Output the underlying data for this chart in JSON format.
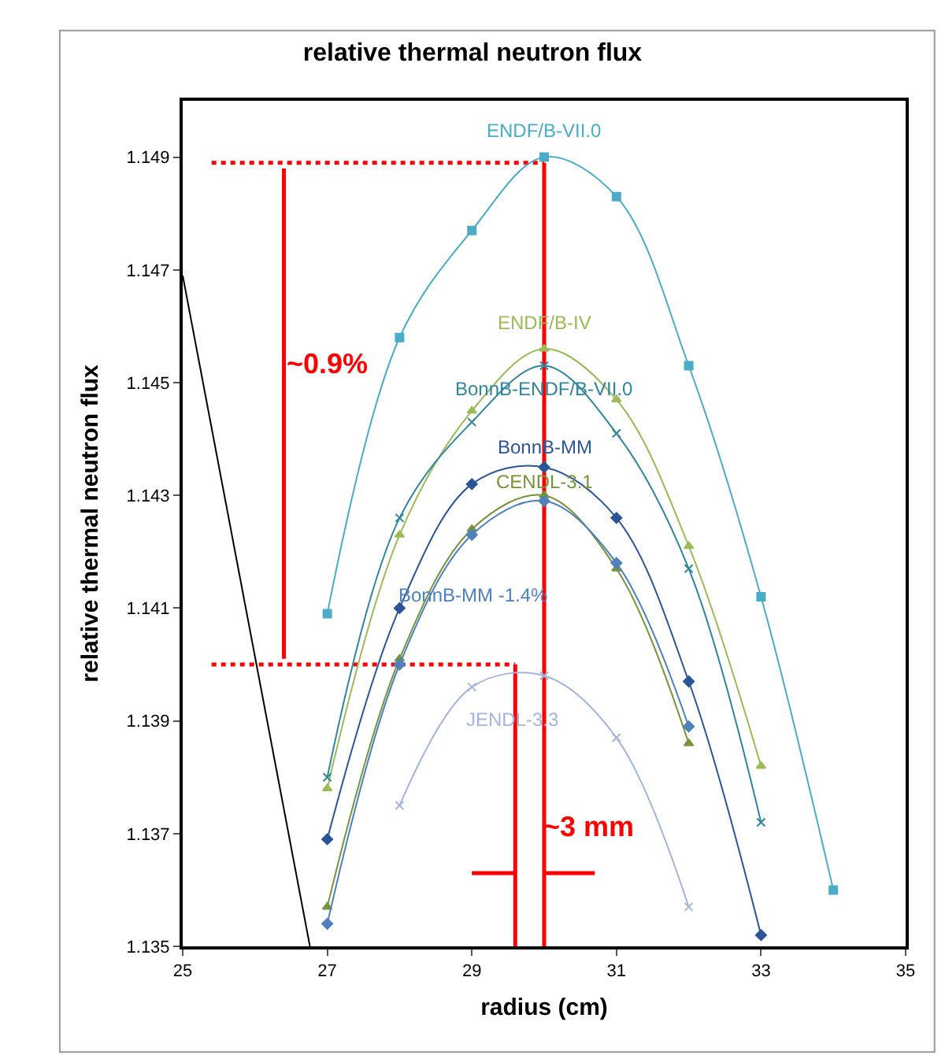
{
  "chart_data": {
    "type": "line",
    "title": "relative thermal neutron flux",
    "xlabel": "radius (cm)",
    "ylabel": "relative thermal neutron flux",
    "xlim": [
      25,
      35
    ],
    "xticks": [
      25,
      27,
      29,
      31,
      33,
      35
    ],
    "ylim": [
      1.135,
      1.15
    ],
    "yticks": [
      1.135,
      1.137,
      1.139,
      1.141,
      1.143,
      1.145,
      1.147,
      1.149
    ],
    "grid": false,
    "legend": false,
    "series": [
      {
        "name": "ENDF/B-VII.0",
        "color": "#4bacc6",
        "marker": "square",
        "x": [
          27,
          28,
          29,
          30,
          31,
          32,
          33,
          34
        ],
        "values": [
          1.1409,
          1.1458,
          1.1477,
          1.149,
          1.1483,
          1.1453,
          1.1412,
          1.136
        ]
      },
      {
        "name": "ENDF/B-IV",
        "color": "#9bbb59",
        "marker": "triangle",
        "x": [
          27,
          28,
          29,
          30,
          31,
          32,
          33
        ],
        "values": [
          1.1378,
          1.1423,
          1.1445,
          1.1456,
          1.1447,
          1.1421,
          1.1382
        ]
      },
      {
        "name": "BonnB-ENDF/B-VII.0",
        "color": "#31859c",
        "marker": "cross",
        "x": [
          27,
          28,
          29,
          30,
          31,
          32,
          33
        ],
        "values": [
          1.138,
          1.1426,
          1.1443,
          1.1453,
          1.1441,
          1.1417,
          1.1372
        ]
      },
      {
        "name": "BonnB-MM",
        "color": "#2c5597",
        "marker": "diamond",
        "x": [
          27,
          28,
          29,
          30,
          31,
          32,
          33
        ],
        "values": [
          1.1369,
          1.141,
          1.1432,
          1.1435,
          1.1426,
          1.1397,
          1.1352
        ]
      },
      {
        "name": "CENDL-3.1",
        "color": "#77933c",
        "marker": "triangle",
        "x": [
          27,
          28,
          29,
          30,
          31,
          32
        ],
        "values": [
          1.1357,
          1.1401,
          1.1424,
          1.143,
          1.1417,
          1.1386
        ]
      },
      {
        "name": "BonnB-MM -1.4%",
        "color": "#4f81bd",
        "marker": "diamond",
        "x": [
          27,
          28,
          29,
          30,
          31,
          32
        ],
        "values": [
          1.1354,
          1.14,
          1.1423,
          1.1429,
          1.1418,
          1.1389
        ]
      },
      {
        "name": "JENDL-3.3",
        "color": "#a5b5d9",
        "marker": "cross",
        "x": [
          28,
          29,
          30,
          31,
          32
        ],
        "values": [
          1.1375,
          1.1396,
          1.1398,
          1.1387,
          1.1357
        ]
      },
      {
        "color": "#000000",
        "marker": "none",
        "x": [
          25,
          26.76
        ],
        "values": [
          1.1469,
          1.135
        ]
      },
      {
        "color": "#ff0000",
        "marker": "none",
        "line_style": "dotted",
        "x": [
          25.4,
          30
        ],
        "values": [
          1.1489,
          1.1489
        ]
      },
      {
        "color": "#ff0000",
        "marker": "none",
        "line_style": "dotted",
        "x": [
          25.4,
          29.6
        ],
        "values": [
          1.14,
          1.14
        ]
      },
      {
        "color": "#ff0000",
        "marker": "none",
        "x": [
          30,
          30
        ],
        "values": [
          1.135,
          1.1489
        ]
      },
      {
        "color": "#ff0000",
        "marker": "none",
        "x": [
          29.6,
          29.6
        ],
        "values": [
          1.135,
          1.14
        ]
      },
      {
        "color": "#ff0000",
        "marker": "none",
        "x": [
          26.4,
          26.4
        ],
        "values": [
          1.1401,
          1.1488
        ]
      },
      {
        "color": "#ff0000",
        "marker": "none",
        "x": [
          29.0,
          29.6
        ],
        "values": [
          1.1363,
          1.1363
        ]
      },
      {
        "color": "#ff0000",
        "marker": "none",
        "x": [
          30.7,
          30.0
        ],
        "values": [
          1.1363,
          1.1363
        ]
      }
    ],
    "annotations": [
      "~0.9%",
      "~3 mm"
    ]
  }
}
